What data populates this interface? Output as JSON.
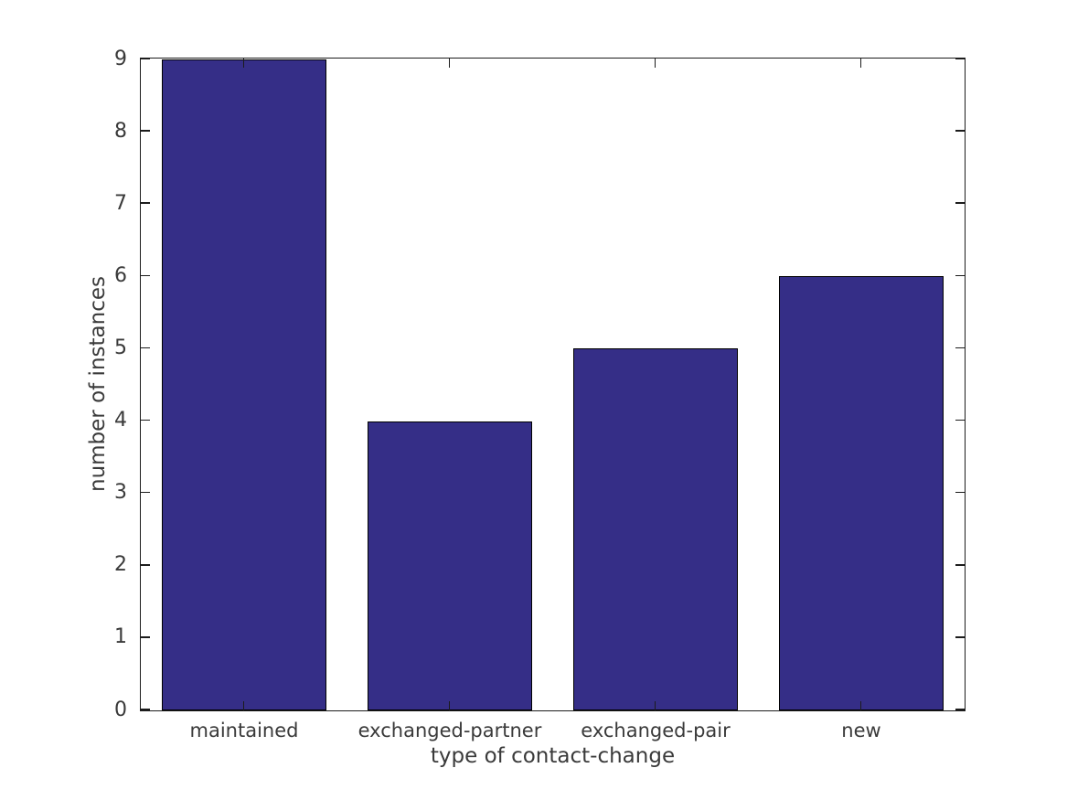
{
  "chart_data": {
    "type": "bar",
    "title": "",
    "categories": [
      "maintained",
      "exchanged-partner",
      "exchanged-pair",
      "new"
    ],
    "values": [
      9,
      4,
      5,
      6
    ],
    "xlabel": "type of contact-change",
    "ylabel": "number of instances",
    "ylim": [
      0,
      9
    ],
    "yticks": [
      0,
      1,
      2,
      3,
      4,
      5,
      6,
      7,
      8,
      9
    ],
    "bar_width_fraction": 0.8,
    "grid": false,
    "legend": "none",
    "ticks_style": "inward, drawn on all four box sides",
    "colors": {
      "bar_fill": "#352e87",
      "bar_edge": "#000000",
      "axis_frame": "#1c1c1c",
      "text": "#3a3a3a",
      "background": "#ffffff"
    }
  }
}
